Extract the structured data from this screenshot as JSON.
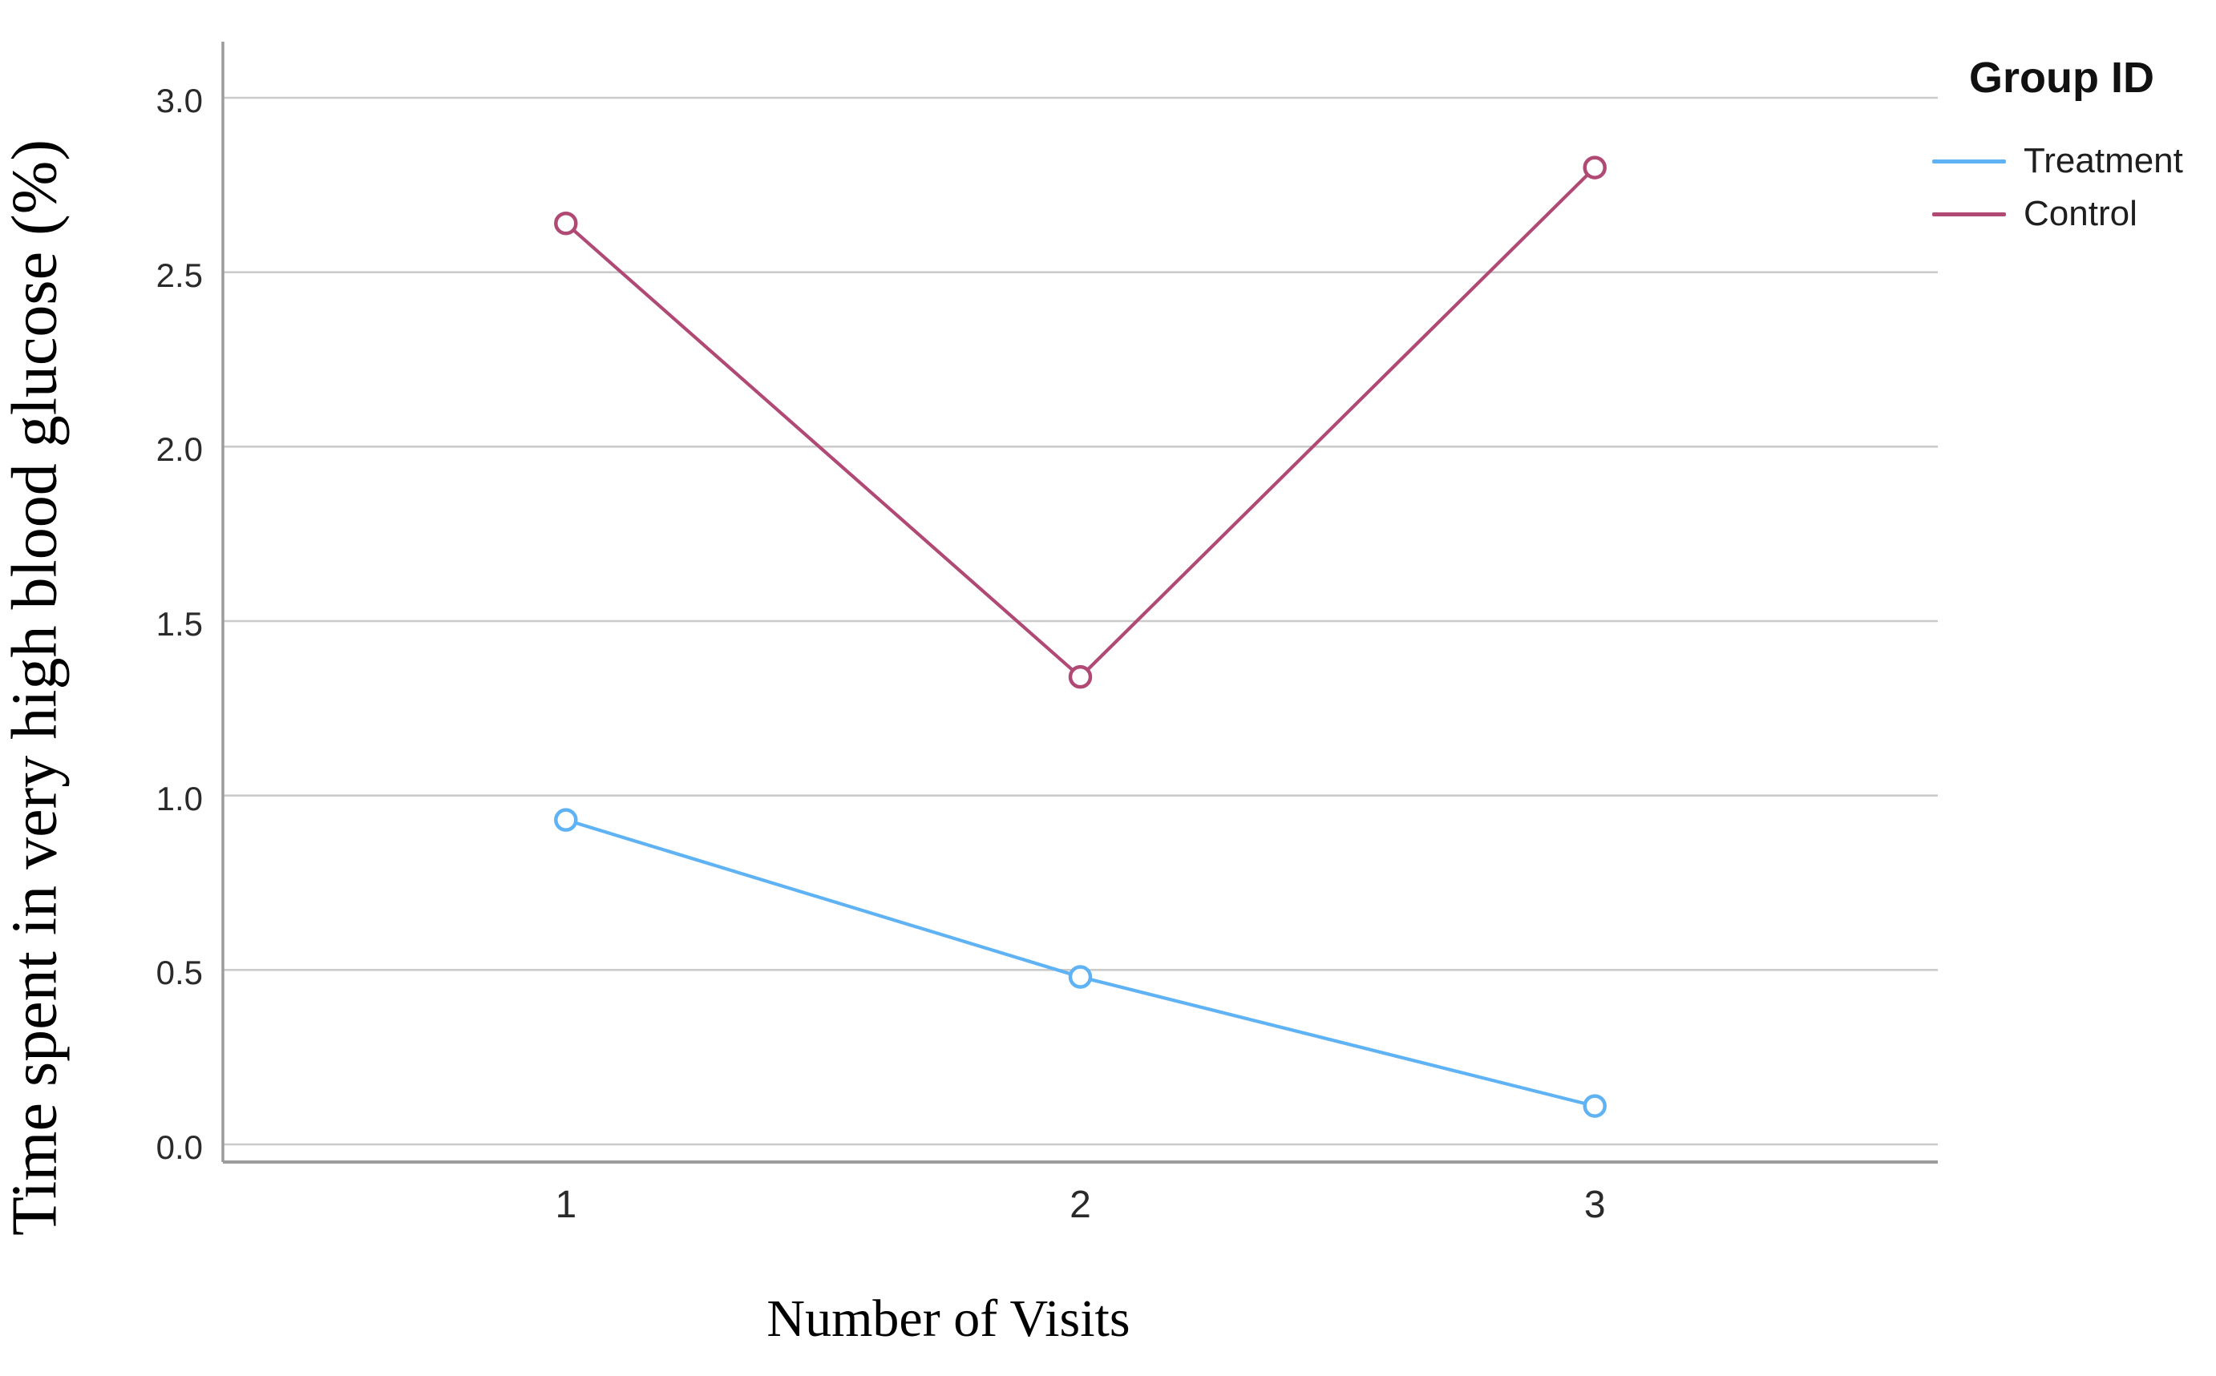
{
  "figure": {
    "legend": {
      "title": "Group ID",
      "entries": [
        {
          "label": "Treatment",
          "color": "#5FB3F4"
        },
        {
          "label": "Control",
          "color": "#B04A75"
        }
      ]
    }
  },
  "chart_data": {
    "type": "line",
    "title": "",
    "xlabel": "Number of Visits",
    "ylabel": "Time spent in very high blood glucose (%)",
    "x": [
      1,
      2,
      3
    ],
    "x_tick_labels": [
      "1",
      "2",
      "3"
    ],
    "y_ticks": [
      0.0,
      0.5,
      1.0,
      1.5,
      2.0,
      2.5,
      3.0
    ],
    "y_tick_labels": [
      "0.0",
      "0.5",
      "1.0",
      "1.5",
      "2.0",
      "2.5",
      "3.0"
    ],
    "ylim": [
      0.0,
      3.0
    ],
    "grid": "horizontal",
    "legend_position": "outside-top-right",
    "series": [
      {
        "name": "Treatment",
        "color": "#5FB3F4",
        "values": [
          0.93,
          0.48,
          0.11
        ]
      },
      {
        "name": "Control",
        "color": "#B04A75",
        "values": [
          2.64,
          1.34,
          2.8
        ]
      }
    ]
  },
  "colors": {
    "gridline": "#CBCBCB",
    "axis_frame": "#9C9C9C",
    "marker_fill": "#FFFFFF",
    "background": "#FFFFFF"
  }
}
